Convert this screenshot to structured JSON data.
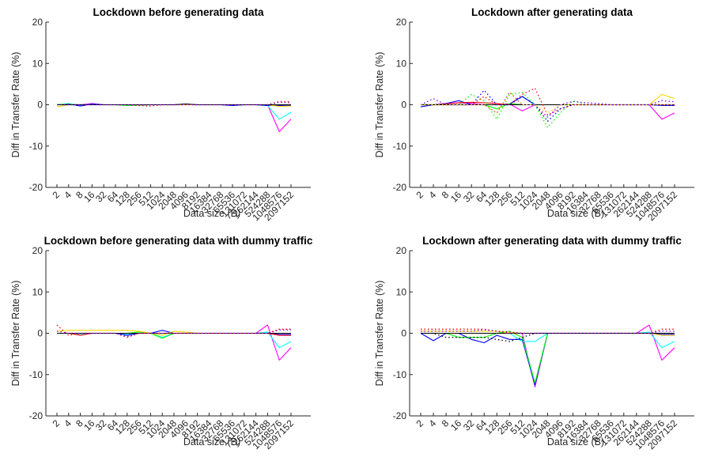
{
  "chart_data": [
    {
      "type": "line",
      "title": "Lockdown before generating data",
      "xlabel": "Data size (B)",
      "ylabel": "Diff in Transfer Rate (%)",
      "ylim": [
        -20,
        20
      ],
      "yticks": [
        "-20",
        "-10",
        "0",
        "10",
        "20"
      ],
      "categories": [
        "2",
        "4",
        "8",
        "16",
        "32",
        "64",
        "128",
        "256",
        "512",
        "1024",
        "2048",
        "4096",
        "8192",
        "16384",
        "32768",
        "65536",
        "131072",
        "262144",
        "524288",
        "1048576",
        "2097152"
      ],
      "grid": false,
      "series": [
        {
          "color": "#ff00ff",
          "style": "solid",
          "values": [
            0,
            0.2,
            0,
            0.3,
            0,
            0,
            0,
            0,
            0,
            0,
            0,
            0.1,
            0,
            0,
            0,
            0,
            0,
            0,
            0,
            -6.5,
            -3.5
          ]
        },
        {
          "color": "#00ffff",
          "style": "solid",
          "values": [
            0,
            0.3,
            -0.2,
            0.2,
            0,
            0,
            -0.1,
            -0.1,
            0,
            0,
            0,
            0,
            0,
            0,
            0,
            -0.1,
            0,
            0,
            -0.2,
            -3.5,
            -1.8
          ]
        },
        {
          "color": "#0000ff",
          "style": "solid",
          "values": [
            0,
            0.2,
            -0.3,
            0.2,
            0,
            0,
            0,
            0,
            0,
            0,
            0,
            0.2,
            0,
            0,
            0,
            -0.2,
            0,
            0,
            -0.2,
            -0.2,
            -0.2
          ]
        },
        {
          "color": "#00ff00",
          "style": "solid",
          "values": [
            0.1,
            0.1,
            0,
            0,
            0,
            0,
            -0.2,
            -0.1,
            0,
            0,
            0,
            0,
            0,
            0,
            0,
            0,
            0,
            0,
            0,
            0,
            0
          ]
        },
        {
          "color": "#ffd700",
          "style": "solid",
          "values": [
            -0.5,
            0,
            0,
            0,
            0,
            0,
            0,
            0,
            0,
            0,
            0,
            0,
            0,
            0,
            0,
            0,
            0,
            0,
            0,
            -0.4,
            -0.3
          ]
        },
        {
          "color": "#000000",
          "style": "solid",
          "values": [
            0,
            0,
            0,
            0,
            0,
            0,
            0,
            0,
            0,
            0,
            0,
            0.2,
            0,
            0,
            0,
            0,
            0,
            0,
            0,
            0,
            0
          ]
        },
        {
          "color": "#ff0000",
          "style": "dotted",
          "values": [
            0,
            0,
            0,
            0,
            0,
            0,
            0,
            -0.2,
            -0.3,
            0,
            0,
            0,
            0,
            0,
            0,
            0,
            0,
            0,
            0,
            0.8,
            0.7
          ]
        },
        {
          "color": "#8000ff",
          "style": "dotted",
          "values": [
            0,
            0,
            0,
            0,
            0,
            0,
            0,
            0,
            0,
            0,
            0,
            0,
            0,
            0,
            0,
            0,
            0,
            0,
            0,
            0.6,
            0.5
          ]
        }
      ]
    },
    {
      "type": "line",
      "title": "Lockdown after generating data",
      "xlabel": "Data size (B)",
      "ylabel": "Diff in Transfer Rate (%)",
      "ylim": [
        -20,
        20
      ],
      "yticks": [
        "-20",
        "-10",
        "0",
        "10",
        "20"
      ],
      "categories": [
        "2",
        "4",
        "8",
        "16",
        "32",
        "64",
        "128",
        "256",
        "512",
        "1024",
        "2048",
        "4096",
        "8192",
        "16384",
        "32768",
        "65536",
        "131072",
        "262144",
        "524288",
        "1048576",
        "2097152"
      ],
      "grid": false,
      "series": [
        {
          "color": "#ff00ff",
          "style": "solid",
          "values": [
            0,
            0,
            0.3,
            0.5,
            0.3,
            0,
            0,
            0.2,
            -1.5,
            0,
            0,
            0,
            0,
            0,
            0,
            0,
            0,
            0,
            0,
            -3.5,
            -2
          ]
        },
        {
          "color": "#00ffff",
          "style": "solid",
          "values": [
            0,
            0,
            0,
            0,
            0,
            0,
            0,
            0,
            0,
            0,
            0,
            0,
            0,
            0,
            0,
            0,
            0,
            0,
            0,
            0,
            0
          ]
        },
        {
          "color": "#0000ff",
          "style": "solid",
          "values": [
            -0.5,
            0,
            0.3,
            1,
            0,
            0,
            0,
            0.2,
            2,
            0,
            0,
            0,
            0,
            0,
            0,
            0,
            0,
            0,
            0,
            -0.2,
            -0.2
          ]
        },
        {
          "color": "#00ff00",
          "style": "solid",
          "values": [
            0,
            0,
            0,
            0,
            0,
            0,
            -1,
            0.3,
            0,
            0,
            0,
            0,
            0,
            0,
            0,
            0,
            0,
            0,
            0,
            0,
            0
          ]
        },
        {
          "color": "#ffd700",
          "style": "solid",
          "values": [
            0,
            0,
            0,
            0,
            0,
            0,
            0,
            0,
            0,
            0,
            0,
            0,
            0,
            0,
            0,
            0,
            0,
            0,
            0,
            2.5,
            1.5
          ]
        },
        {
          "color": "#ff0000",
          "style": "solid",
          "values": [
            0,
            0,
            0.2,
            0.5,
            0.6,
            0.5,
            0.3,
            0,
            0,
            0,
            0,
            0,
            0,
            0,
            0,
            0,
            0,
            0,
            0,
            0,
            0
          ]
        },
        {
          "color": "#000000",
          "style": "solid",
          "values": [
            0,
            0,
            0,
            0,
            0,
            0,
            0,
            0,
            0,
            0,
            0,
            0,
            0,
            0,
            0,
            0,
            0,
            0,
            0,
            0,
            0
          ]
        },
        {
          "color": "#00ff00",
          "style": "dotted",
          "values": [
            0,
            0,
            0,
            0,
            2.5,
            1,
            -3.5,
            2.5,
            3,
            0,
            -5.5,
            -2,
            1,
            0,
            0,
            0,
            0,
            0,
            0,
            0,
            0
          ]
        },
        {
          "color": "#ff0000",
          "style": "dotted",
          "values": [
            0,
            0,
            0,
            0,
            0,
            2,
            0,
            0,
            2.5,
            4,
            -2.5,
            -1,
            0,
            0,
            0,
            0,
            0,
            0,
            0,
            0,
            0
          ]
        },
        {
          "color": "#0000ff",
          "style": "dotted",
          "values": [
            0,
            0,
            0,
            0,
            0,
            3.5,
            0,
            0,
            2,
            0,
            -4,
            -1,
            0,
            0,
            0,
            0,
            0,
            0,
            0,
            0,
            0
          ]
        },
        {
          "color": "#8000ff",
          "style": "dotted",
          "values": [
            0,
            1.5,
            0,
            0,
            0,
            0,
            -2,
            3,
            0,
            0,
            -3,
            0,
            0.8,
            0.5,
            0.3,
            0,
            0,
            0,
            0,
            1,
            0.7
          ]
        },
        {
          "color": "#ffd700",
          "style": "dotted",
          "values": [
            0,
            0,
            0,
            0,
            0,
            0,
            -2,
            3,
            0,
            0,
            -2,
            0,
            0,
            0,
            0,
            0,
            0,
            0,
            0,
            0,
            0
          ]
        }
      ]
    },
    {
      "type": "line",
      "title": "Lockdown before generating data with dummy traffic",
      "xlabel": "Data size (B)",
      "ylabel": "Diff in Transfer Rate (%)",
      "ylim": [
        -20,
        20
      ],
      "yticks": [
        "-20",
        "-10",
        "0",
        "10",
        "20"
      ],
      "categories": [
        "2",
        "4",
        "8",
        "16",
        "32",
        "64",
        "128",
        "256",
        "512",
        "1024",
        "2048",
        "4096",
        "8192",
        "16384",
        "32768",
        "65536",
        "131072",
        "262144",
        "524288",
        "1048576",
        "2097152"
      ],
      "grid": false,
      "series": [
        {
          "color": "#ff00ff",
          "style": "solid",
          "values": [
            0,
            0,
            0,
            0,
            0,
            0,
            0,
            0,
            0,
            0,
            0,
            0,
            0,
            0,
            0,
            0,
            0,
            0,
            2,
            -6.5,
            -3.5
          ]
        },
        {
          "color": "#00ffff",
          "style": "solid",
          "values": [
            0,
            0,
            -0.2,
            0,
            0,
            0,
            -0.3,
            0,
            0,
            -1,
            0,
            0,
            0,
            0,
            0,
            0,
            0,
            0,
            0.3,
            -3.5,
            -2
          ]
        },
        {
          "color": "#0000ff",
          "style": "solid",
          "values": [
            0,
            0,
            0,
            0,
            0,
            0,
            -0.5,
            0,
            0,
            0.7,
            0,
            0,
            0,
            0,
            0,
            0,
            0,
            0,
            0,
            -0.3,
            -0.3
          ]
        },
        {
          "color": "#00ff00",
          "style": "solid",
          "values": [
            0,
            0,
            0,
            0,
            0,
            0,
            0,
            0.3,
            0,
            -1.2,
            0,
            0,
            0,
            0,
            0,
            0,
            0,
            0,
            0,
            0,
            0
          ]
        },
        {
          "color": "#ffd700",
          "style": "solid",
          "values": [
            0.5,
            0.7,
            0.7,
            0.7,
            0.7,
            0.7,
            0.7,
            0.5,
            0,
            -0.5,
            0.5,
            0.3,
            0,
            0,
            0,
            0,
            0,
            0,
            0,
            0,
            0
          ]
        },
        {
          "color": "#ff0000",
          "style": "solid",
          "values": [
            0,
            0,
            -0.5,
            0,
            0,
            0,
            0,
            0,
            0,
            0,
            0,
            0,
            0,
            0,
            0,
            0,
            0,
            0,
            0,
            -0.5,
            -0.5
          ]
        },
        {
          "color": "#000000",
          "style": "solid",
          "values": [
            0,
            0,
            0,
            0,
            0,
            0,
            0,
            0,
            0,
            0,
            0,
            0,
            0,
            0,
            0,
            0,
            0,
            0,
            0,
            0,
            0
          ]
        },
        {
          "color": "#ff0000",
          "style": "dotted",
          "values": [
            2,
            -0.5,
            0,
            0,
            0,
            0,
            -1,
            0,
            0,
            0,
            0,
            0,
            0,
            0,
            0,
            0,
            0,
            0,
            0,
            1,
            1
          ]
        },
        {
          "color": "#8000ff",
          "style": "dotted",
          "values": [
            0.5,
            0,
            0,
            0,
            0,
            0,
            -0.8,
            0,
            0,
            0,
            0,
            0,
            0,
            0,
            0,
            0,
            0,
            0,
            0,
            0.8,
            0.8
          ]
        }
      ]
    },
    {
      "type": "line",
      "title": "Lockdown after generating data with dummy traffic",
      "xlabel": "Data size (B)",
      "ylabel": "Diff in Transfer Rate (%)",
      "ylim": [
        -20,
        20
      ],
      "yticks": [
        "-20",
        "-10",
        "0",
        "10",
        "20"
      ],
      "categories": [
        "2",
        "4",
        "8",
        "16",
        "32",
        "64",
        "128",
        "256",
        "512",
        "1024",
        "2048",
        "4096",
        "8192",
        "16384",
        "32768",
        "65536",
        "131072",
        "262144",
        "524288",
        "1048576",
        "2097152"
      ],
      "grid": false,
      "series": [
        {
          "color": "#ff00ff",
          "style": "solid",
          "values": [
            0,
            0,
            0,
            0,
            0,
            0,
            0,
            0,
            0,
            -13,
            0,
            0,
            0,
            0,
            0,
            0,
            0,
            0,
            2,
            -6.5,
            -3.5
          ]
        },
        {
          "color": "#00ffff",
          "style": "solid",
          "values": [
            0,
            0,
            0,
            0,
            0,
            0,
            0,
            0,
            -2,
            -2,
            0,
            0,
            0,
            0,
            0,
            0,
            0,
            0,
            0.3,
            -3.5,
            -2
          ]
        },
        {
          "color": "#0000ff",
          "style": "solid",
          "values": [
            0,
            -1.8,
            0,
            0,
            -1.5,
            -2.3,
            -0.5,
            -1.5,
            -1.5,
            -12.5,
            0,
            0,
            0,
            0,
            0,
            0,
            0,
            0,
            0,
            -0.3,
            -0.3
          ]
        },
        {
          "color": "#00ff00",
          "style": "solid",
          "values": [
            0,
            0,
            0,
            -1,
            -1,
            -1,
            0,
            0.5,
            -1,
            -12,
            0,
            0,
            0,
            0,
            0,
            0,
            0,
            0,
            0,
            0,
            0
          ]
        },
        {
          "color": "#ffd700",
          "style": "solid",
          "values": [
            0.5,
            0.5,
            0.5,
            0.5,
            0.5,
            0.5,
            0.5,
            0.3,
            0,
            0,
            0,
            0,
            0,
            0,
            0,
            0,
            0,
            0,
            0,
            -0.5,
            -0.5
          ]
        },
        {
          "color": "#ff0000",
          "style": "solid",
          "values": [
            0,
            0,
            0,
            0,
            0,
            0,
            0,
            0,
            0,
            0,
            0,
            0,
            0,
            0,
            0,
            0,
            0,
            0,
            0,
            0,
            0
          ]
        },
        {
          "color": "#000000",
          "style": "solid",
          "values": [
            0,
            0,
            0,
            0,
            0,
            0,
            0,
            0,
            0,
            0,
            0,
            0,
            0,
            0,
            0,
            0,
            0,
            0,
            0,
            0,
            0
          ]
        },
        {
          "color": "#000000",
          "style": "dotted",
          "values": [
            0,
            0,
            -1,
            -1,
            -1,
            -1,
            -1.5,
            -2,
            -1,
            0,
            0,
            0,
            0,
            0,
            0,
            0,
            0,
            0,
            0,
            0,
            0
          ]
        },
        {
          "color": "#ff0000",
          "style": "dotted",
          "values": [
            1,
            1,
            1,
            1,
            1,
            1,
            0.5,
            0,
            0,
            0,
            0,
            0,
            0,
            0,
            0,
            0,
            0,
            0,
            0,
            1,
            1
          ]
        },
        {
          "color": "#8000ff",
          "style": "dotted",
          "values": [
            0.5,
            0.5,
            0.5,
            0.5,
            0.5,
            0.8,
            0.5,
            0.3,
            0,
            0,
            0,
            0,
            0,
            0,
            0,
            0,
            0,
            0,
            0,
            0.5,
            0.5
          ]
        }
      ]
    }
  ]
}
